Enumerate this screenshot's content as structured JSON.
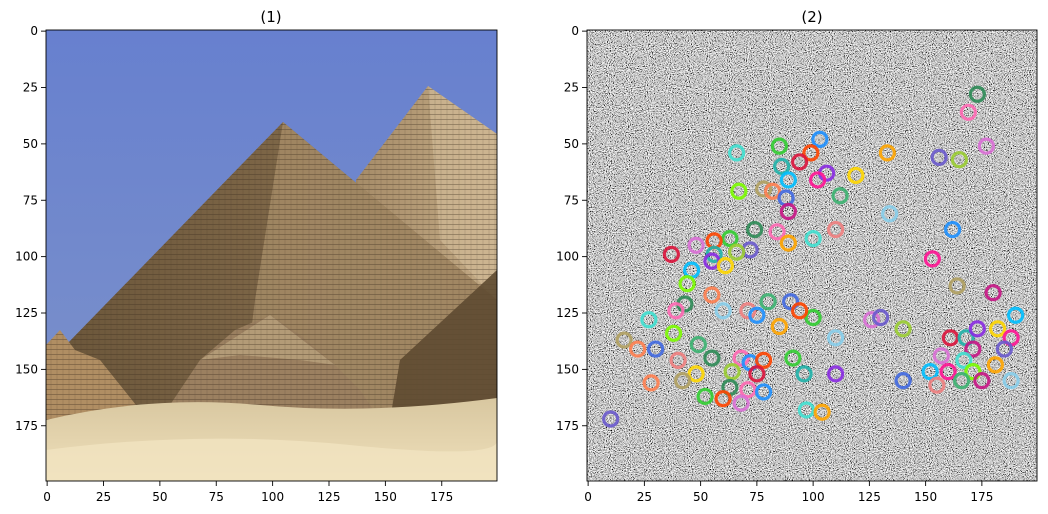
{
  "figure": {
    "panels": [
      {
        "title": "(1)"
      },
      {
        "title": "(2)"
      }
    ]
  },
  "chart_data": [
    {
      "type": "image",
      "title": "(1)",
      "xlim": [
        0,
        199
      ],
      "ylim": [
        199,
        0
      ],
      "x_ticks": [
        0,
        25,
        50,
        75,
        100,
        125,
        150,
        175
      ],
      "y_ticks": [
        0,
        25,
        50,
        75,
        100,
        125,
        150,
        175
      ],
      "x_tick_labels": [
        "0",
        "25",
        "50",
        "75",
        "100",
        "125",
        "150",
        "175"
      ],
      "y_tick_labels": [
        "0",
        "25",
        "50",
        "75",
        "100",
        "125",
        "150",
        "175"
      ],
      "content": "photo of pyramids",
      "colors": {
        "sky": "#6a82cc",
        "stone_dark": "#6f5a3d",
        "stone_light": "#c2ab88",
        "sand": "#e5d5ae"
      }
    },
    {
      "type": "scatter",
      "title": "(2)",
      "background": "grayscale noise",
      "marker": "hollow circle",
      "xlim": [
        0,
        199
      ],
      "ylim": [
        199,
        0
      ],
      "x_ticks": [
        0,
        25,
        50,
        75,
        100,
        125,
        150,
        175
      ],
      "y_ticks": [
        0,
        25,
        50,
        75,
        100,
        125,
        150,
        175
      ],
      "x_tick_labels": [
        "0",
        "25",
        "50",
        "75",
        "100",
        "125",
        "150",
        "175"
      ],
      "y_tick_labels": [
        "0",
        "25",
        "50",
        "75",
        "100",
        "125",
        "150",
        "175"
      ],
      "points": [
        [
          173,
          28
        ],
        [
          169,
          36
        ],
        [
          103,
          48
        ],
        [
          85,
          51
        ],
        [
          99,
          54
        ],
        [
          177,
          51
        ],
        [
          66,
          54
        ],
        [
          133,
          54
        ],
        [
          156,
          56
        ],
        [
          165,
          57
        ],
        [
          94,
          58
        ],
        [
          86,
          60
        ],
        [
          106,
          63
        ],
        [
          119,
          64
        ],
        [
          89,
          66
        ],
        [
          102,
          66
        ],
        [
          67,
          71
        ],
        [
          78,
          70
        ],
        [
          82,
          71
        ],
        [
          88,
          74
        ],
        [
          112,
          73
        ],
        [
          89,
          80
        ],
        [
          134,
          81
        ],
        [
          110,
          88
        ],
        [
          74,
          88
        ],
        [
          84,
          89
        ],
        [
          162,
          88
        ],
        [
          63,
          92
        ],
        [
          56,
          93
        ],
        [
          48,
          95
        ],
        [
          100,
          92
        ],
        [
          89,
          94
        ],
        [
          72,
          97
        ],
        [
          66,
          98
        ],
        [
          37,
          99
        ],
        [
          56,
          99
        ],
        [
          55,
          102
        ],
        [
          61,
          104
        ],
        [
          46,
          106
        ],
        [
          153,
          101
        ],
        [
          44,
          112
        ],
        [
          164,
          113
        ],
        [
          55,
          117
        ],
        [
          90,
          120
        ],
        [
          80,
          120
        ],
        [
          180,
          116
        ],
        [
          60,
          124
        ],
        [
          71,
          124
        ],
        [
          43,
          121
        ],
        [
          39,
          124
        ],
        [
          75,
          126
        ],
        [
          100,
          127
        ],
        [
          94,
          124
        ],
        [
          126,
          128
        ],
        [
          27,
          128
        ],
        [
          85,
          131
        ],
        [
          130,
          127
        ],
        [
          140,
          132
        ],
        [
          161,
          136
        ],
        [
          168,
          136
        ],
        [
          173,
          132
        ],
        [
          182,
          132
        ],
        [
          190,
          126
        ],
        [
          188,
          136
        ],
        [
          38,
          134
        ],
        [
          16,
          137
        ],
        [
          22,
          141
        ],
        [
          30,
          141
        ],
        [
          49,
          139
        ],
        [
          171,
          141
        ],
        [
          110,
          136
        ],
        [
          40,
          146
        ],
        [
          55,
          145
        ],
        [
          68,
          145
        ],
        [
          72,
          147
        ],
        [
          91,
          145
        ],
        [
          78,
          146
        ],
        [
          157,
          144
        ],
        [
          167,
          146
        ],
        [
          181,
          148
        ],
        [
          185,
          141
        ],
        [
          64,
          151
        ],
        [
          75,
          152
        ],
        [
          96,
          152
        ],
        [
          110,
          152
        ],
        [
          48,
          152
        ],
        [
          152,
          151
        ],
        [
          160,
          151
        ],
        [
          171,
          151
        ],
        [
          42,
          155
        ],
        [
          28,
          156
        ],
        [
          140,
          155
        ],
        [
          166,
          155
        ],
        [
          175,
          155
        ],
        [
          188,
          155
        ],
        [
          155,
          157
        ],
        [
          63,
          158
        ],
        [
          71,
          159
        ],
        [
          78,
          160
        ],
        [
          52,
          162
        ],
        [
          60,
          163
        ],
        [
          68,
          165
        ],
        [
          97,
          168
        ],
        [
          104,
          169
        ],
        [
          10,
          172
        ]
      ]
    }
  ]
}
